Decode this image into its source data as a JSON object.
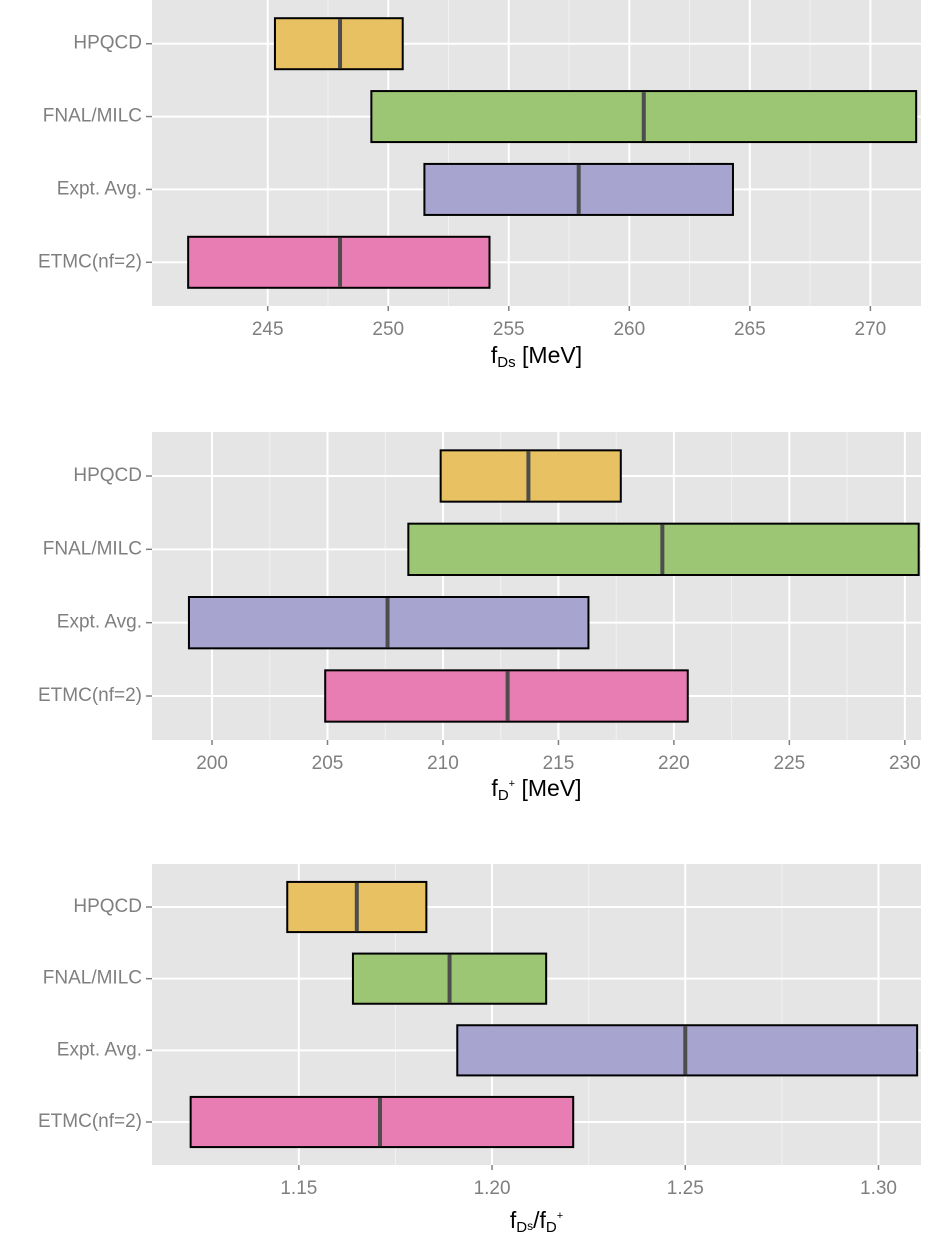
{
  "chart_data": [
    {
      "type": "crossbar",
      "categories": [
        "HPQCD",
        "FNAL/MILC",
        "Expt. Avg.",
        "ETMC(nf=2)"
      ],
      "low": [
        245.3,
        249.3,
        251.5,
        241.7
      ],
      "mid": [
        248.0,
        260.6,
        257.9,
        248.0
      ],
      "high": [
        250.6,
        271.9,
        264.3,
        254.2
      ],
      "colors": [
        "#e8c262",
        "#9dc674",
        "#a7a5d0",
        "#e77db2"
      ],
      "xlim": [
        240.2,
        272.1
      ],
      "xticks": [
        245,
        250,
        255,
        260,
        265,
        270
      ],
      "grid": true,
      "x_label": [
        {
          "text": "f",
          "pos": "base"
        },
        {
          "text": "Ds",
          "pos": "sub"
        },
        {
          "text": " [MeV]",
          "pos": "base"
        }
      ]
    },
    {
      "type": "crossbar",
      "categories": [
        "HPQCD",
        "FNAL/MILC",
        "Expt. Avg.",
        "ETMC(nf=2)"
      ],
      "low": [
        209.9,
        208.5,
        199.0,
        204.9
      ],
      "mid": [
        213.7,
        219.5,
        207.6,
        212.8
      ],
      "high": [
        217.7,
        230.6,
        216.3,
        220.6
      ],
      "colors": [
        "#e8c262",
        "#9dc674",
        "#a7a5d0",
        "#e77db2"
      ],
      "xlim": [
        197.4,
        230.7
      ],
      "xticks": [
        200,
        205,
        210,
        215,
        220,
        225,
        230
      ],
      "grid": true,
      "x_label": [
        {
          "text": "f",
          "pos": "base"
        },
        {
          "text": "D",
          "pos": "sub"
        },
        {
          "text": "+",
          "pos": "subsup"
        },
        {
          "text": " [MeV]",
          "pos": "base"
        }
      ]
    },
    {
      "type": "crossbar",
      "categories": [
        "HPQCD",
        "FNAL/MILC",
        "Expt. Avg.",
        "ETMC(nf=2)"
      ],
      "low": [
        1.147,
        1.164,
        1.191,
        1.122
      ],
      "mid": [
        1.165,
        1.189,
        1.25,
        1.171
      ],
      "high": [
        1.183,
        1.214,
        1.31,
        1.221
      ],
      "colors": [
        "#e8c262",
        "#9dc674",
        "#a7a5d0",
        "#e77db2"
      ],
      "xlim": [
        1.112,
        1.311
      ],
      "xticks": [
        {
          "value": 1.15,
          "label": "1.15"
        },
        {
          "value": 1.2,
          "label": "1.20"
        },
        {
          "value": 1.25,
          "label": "1.25"
        },
        {
          "value": 1.3,
          "label": "1.30"
        }
      ],
      "grid": true,
      "x_label": [
        {
          "text": "f",
          "pos": "base"
        },
        {
          "text": "D",
          "pos": "sub"
        },
        {
          "text": "s",
          "pos": "subsub"
        },
        {
          "text": "/",
          "pos": "base"
        },
        {
          "text": "f",
          "pos": "base"
        },
        {
          "text": "D",
          "pos": "sub"
        },
        {
          "text": "+",
          "pos": "subsup"
        }
      ]
    }
  ]
}
